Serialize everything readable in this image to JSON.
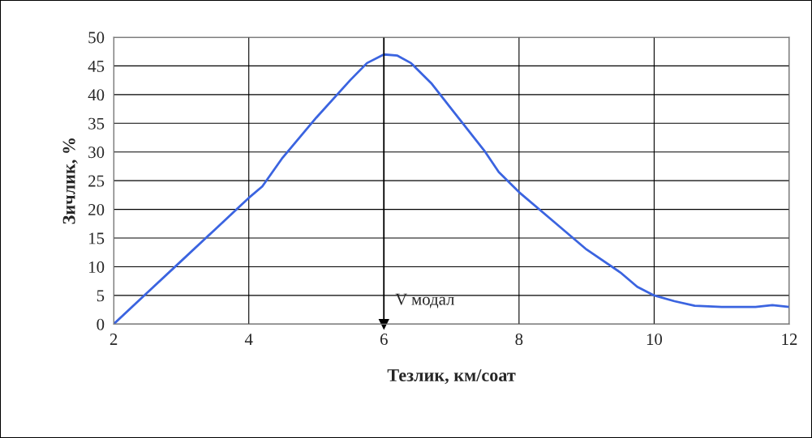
{
  "chart_data": {
    "type": "line",
    "xlabel": "Тезлик, км/соат",
    "ylabel": "Зичлик, %",
    "x": [
      2,
      2.5,
      3,
      3.5,
      4,
      4.2,
      4.5,
      5,
      5.5,
      5.75,
      6,
      6.2,
      6.4,
      6.7,
      7,
      7.5,
      7.7,
      8,
      8.5,
      9,
      9.5,
      9.75,
      10,
      10.3,
      10.6,
      11,
      11.5,
      11.75,
      12
    ],
    "series": [
      {
        "color": "#3b64e0",
        "values": [
          0,
          5.5,
          11,
          16.5,
          22,
          24,
          29,
          36,
          42.5,
          45.5,
          47,
          46.8,
          45.5,
          42,
          37.5,
          30,
          26.5,
          23,
          18,
          13,
          9,
          6.5,
          5,
          4,
          3.2,
          3,
          3,
          3.3,
          3
        ]
      }
    ],
    "xlim": [
      2,
      12
    ],
    "xticks": [
      2,
      4,
      6,
      8,
      10,
      12
    ],
    "ylim": [
      0,
      50
    ],
    "yticks": [
      0,
      5,
      10,
      15,
      20,
      25,
      30,
      35,
      40,
      45,
      50
    ],
    "grid": true,
    "legend": false,
    "marker": "none",
    "line_style": "solid",
    "ref_lines": [
      {
        "axis": "x",
        "value": 6,
        "label": "V модал",
        "color": "#000000",
        "line_style": "solid"
      }
    ]
  }
}
